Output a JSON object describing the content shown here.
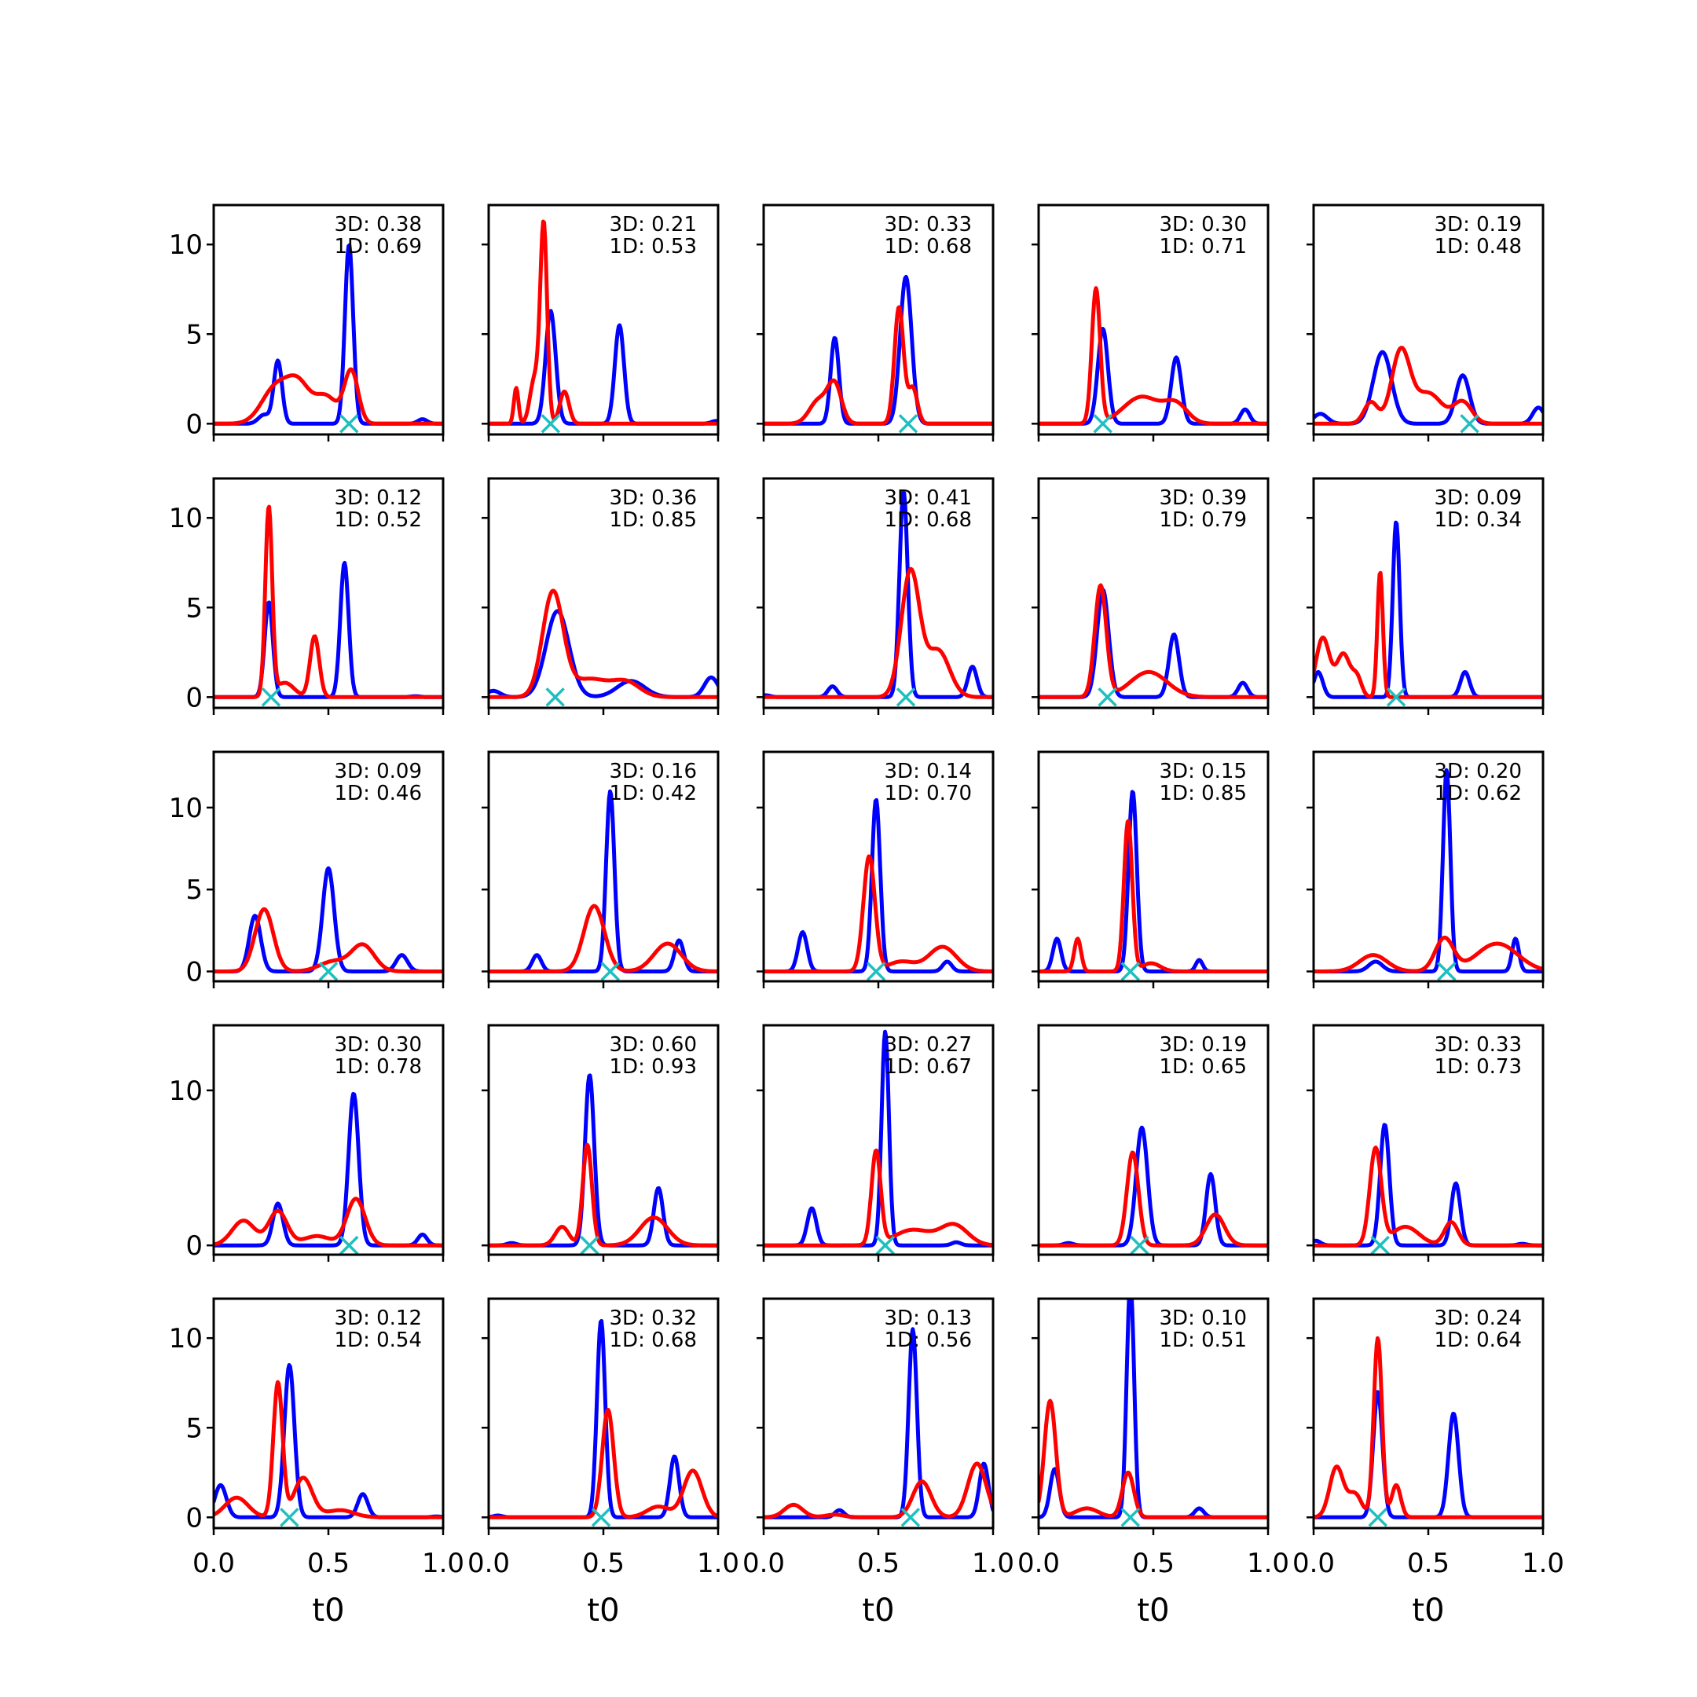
{
  "chart_data": {
    "type": "line",
    "layout": {
      "rows": 5,
      "cols": 5
    },
    "xlabel": "t0",
    "xlim": [
      0,
      1
    ],
    "xticks": [
      0.0,
      0.5,
      1.0
    ],
    "xtick_labels": [
      "0.0",
      "0.5",
      "1.0"
    ],
    "row_ylim": [
      [
        -0.6,
        12.2
      ],
      [
        -0.6,
        12.2
      ],
      [
        -0.6,
        13.4
      ],
      [
        -0.6,
        14.2
      ],
      [
        -0.6,
        12.2
      ]
    ],
    "row_yticks": [
      [
        0,
        5,
        10
      ],
      [
        0,
        5,
        10
      ],
      [
        0,
        5,
        10
      ],
      [
        0,
        10
      ],
      [
        0,
        5,
        10
      ]
    ],
    "colors": {
      "blue": "#0000ff",
      "red": "#ff0000",
      "marker": "#1fbfbf"
    },
    "panels": [
      {
        "annot": [
          "3D: 0.38",
          "1D: 0.69"
        ],
        "marker_x": 0.59,
        "blue": [
          [
            0.22,
            0.5,
            0.025
          ],
          [
            0.28,
            3.5,
            0.018
          ],
          [
            0.59,
            10.0,
            0.018
          ],
          [
            0.91,
            0.25,
            0.02
          ]
        ],
        "red": [
          [
            0.27,
            2.0,
            0.06
          ],
          [
            0.37,
            2.0,
            0.05
          ],
          [
            0.49,
            1.5,
            0.05
          ],
          [
            0.6,
            2.9,
            0.03
          ]
        ]
      },
      {
        "annot": [
          "3D: 0.21",
          "1D: 0.53"
        ],
        "marker_x": 0.27,
        "blue": [
          [
            0.27,
            6.3,
            0.022
          ],
          [
            0.57,
            5.5,
            0.02
          ],
          [
            0.99,
            0.15,
            0.02
          ]
        ],
        "red": [
          [
            0.12,
            2.0,
            0.01
          ],
          [
            0.24,
            11.0,
            0.015
          ],
          [
            0.2,
            2.5,
            0.02
          ],
          [
            0.33,
            1.8,
            0.02
          ]
        ]
      },
      {
        "annot": [
          "3D: 0.33",
          "1D: 0.68"
        ],
        "marker_x": 0.63,
        "blue": [
          [
            0.31,
            4.8,
            0.018
          ],
          [
            0.62,
            8.2,
            0.025
          ]
        ],
        "red": [
          [
            0.24,
            1.3,
            0.04
          ],
          [
            0.31,
            2.1,
            0.03
          ],
          [
            0.59,
            6.5,
            0.02
          ],
          [
            0.65,
            2.0,
            0.02
          ]
        ]
      },
      {
        "annot": [
          "3D: 0.30",
          "1D: 0.71"
        ],
        "marker_x": 0.28,
        "blue": [
          [
            0.28,
            5.3,
            0.022
          ],
          [
            0.6,
            3.7,
            0.022
          ],
          [
            0.9,
            0.8,
            0.02
          ]
        ],
        "red": [
          [
            0.25,
            7.5,
            0.018
          ],
          [
            0.45,
            1.5,
            0.08
          ],
          [
            0.6,
            1.0,
            0.05
          ]
        ]
      },
      {
        "annot": [
          "3D: 0.19",
          "1D: 0.48"
        ],
        "marker_x": 0.68,
        "blue": [
          [
            0.03,
            0.55,
            0.03
          ],
          [
            0.3,
            4.0,
            0.04
          ],
          [
            0.65,
            2.7,
            0.03
          ],
          [
            0.98,
            0.9,
            0.025
          ]
        ],
        "red": [
          [
            0.25,
            1.2,
            0.03
          ],
          [
            0.38,
            4.0,
            0.04
          ],
          [
            0.5,
            1.7,
            0.06
          ],
          [
            0.65,
            1.2,
            0.04
          ]
        ]
      },
      {
        "annot": [
          "3D: 0.12",
          "1D: 0.52"
        ],
        "marker_x": 0.25,
        "blue": [
          [
            0.24,
            5.3,
            0.018
          ],
          [
            0.57,
            7.5,
            0.018
          ],
          [
            0.88,
            0.05,
            0.02
          ]
        ],
        "red": [
          [
            0.24,
            10.5,
            0.015
          ],
          [
            0.31,
            0.8,
            0.04
          ],
          [
            0.44,
            3.4,
            0.02
          ]
        ]
      },
      {
        "annot": [
          "3D: 0.36",
          "1D: 0.85"
        ],
        "marker_x": 0.29,
        "blue": [
          [
            0.02,
            0.35,
            0.03
          ],
          [
            0.3,
            4.8,
            0.05
          ],
          [
            0.62,
            0.9,
            0.06
          ],
          [
            0.97,
            1.1,
            0.03
          ]
        ],
        "red": [
          [
            0.28,
            5.8,
            0.045
          ],
          [
            0.44,
            1.0,
            0.08
          ],
          [
            0.6,
            0.8,
            0.06
          ]
        ]
      },
      {
        "annot": [
          "3D: 0.41",
          "1D: 0.68"
        ],
        "marker_x": 0.62,
        "blue": [
          [
            0.01,
            0.1,
            0.02
          ],
          [
            0.3,
            0.6,
            0.02
          ],
          [
            0.61,
            11.5,
            0.018
          ],
          [
            0.91,
            1.7,
            0.02
          ]
        ],
        "red": [
          [
            0.64,
            7.0,
            0.04
          ],
          [
            0.76,
            2.6,
            0.05
          ]
        ]
      },
      {
        "annot": [
          "3D: 0.39",
          "1D: 0.79"
        ],
        "marker_x": 0.3,
        "blue": [
          [
            0.28,
            6.0,
            0.025
          ],
          [
            0.59,
            3.5,
            0.022
          ],
          [
            0.89,
            0.8,
            0.02
          ]
        ],
        "red": [
          [
            0.27,
            6.2,
            0.025
          ],
          [
            0.48,
            1.4,
            0.08
          ]
        ]
      },
      {
        "annot": [
          "3D: 0.09",
          "1D: 0.34"
        ],
        "marker_x": 0.36,
        "blue": [
          [
            0.02,
            1.4,
            0.02
          ],
          [
            0.36,
            9.8,
            0.015
          ],
          [
            0.66,
            1.4,
            0.02
          ]
        ],
        "red": [
          [
            0.04,
            3.3,
            0.03
          ],
          [
            0.13,
            2.4,
            0.03
          ],
          [
            0.19,
            1.0,
            0.02
          ],
          [
            0.29,
            7.0,
            0.012
          ]
        ]
      },
      {
        "annot": [
          "3D: 0.09",
          "1D: 0.46"
        ],
        "marker_x": 0.5,
        "blue": [
          [
            0.18,
            3.4,
            0.025
          ],
          [
            0.5,
            6.3,
            0.025
          ],
          [
            0.82,
            1.0,
            0.025
          ]
        ],
        "red": [
          [
            0.22,
            3.8,
            0.04
          ],
          [
            0.52,
            0.6,
            0.06
          ],
          [
            0.65,
            1.6,
            0.05
          ]
        ]
      },
      {
        "annot": [
          "3D: 0.16",
          "1D: 0.42"
        ],
        "marker_x": 0.53,
        "blue": [
          [
            0.21,
            1.0,
            0.02
          ],
          [
            0.53,
            11.0,
            0.018
          ],
          [
            0.83,
            1.9,
            0.02
          ]
        ],
        "red": [
          [
            0.46,
            4.0,
            0.045
          ],
          [
            0.78,
            1.7,
            0.06
          ]
        ]
      },
      {
        "annot": [
          "3D: 0.14",
          "1D: 0.70"
        ],
        "marker_x": 0.49,
        "blue": [
          [
            0.17,
            2.4,
            0.02
          ],
          [
            0.49,
            10.5,
            0.018
          ],
          [
            0.8,
            0.6,
            0.02
          ]
        ],
        "red": [
          [
            0.46,
            7.0,
            0.025
          ],
          [
            0.6,
            0.6,
            0.06
          ],
          [
            0.78,
            1.5,
            0.06
          ]
        ]
      },
      {
        "annot": [
          "3D: 0.15",
          "1D: 0.85"
        ],
        "marker_x": 0.4,
        "blue": [
          [
            0.08,
            2.0,
            0.018
          ],
          [
            0.41,
            11.0,
            0.018
          ],
          [
            0.7,
            0.7,
            0.015
          ]
        ],
        "red": [
          [
            0.17,
            2.0,
            0.015
          ],
          [
            0.39,
            9.2,
            0.018
          ],
          [
            0.49,
            0.5,
            0.04
          ]
        ]
      },
      {
        "annot": [
          "3D: 0.20",
          "1D: 0.62"
        ],
        "marker_x": 0.58,
        "blue": [
          [
            0.27,
            0.6,
            0.03
          ],
          [
            0.58,
            12.3,
            0.016
          ],
          [
            0.88,
            2.0,
            0.015
          ]
        ],
        "red": [
          [
            0.26,
            1.0,
            0.06
          ],
          [
            0.57,
            2.0,
            0.04
          ],
          [
            0.8,
            1.7,
            0.09
          ]
        ]
      },
      {
        "annot": [
          "3D: 0.30",
          "1D: 0.78"
        ],
        "marker_x": 0.59,
        "blue": [
          [
            0.28,
            2.7,
            0.022
          ],
          [
            0.61,
            9.8,
            0.022
          ],
          [
            0.91,
            0.7,
            0.02
          ]
        ],
        "red": [
          [
            0.13,
            1.6,
            0.05
          ],
          [
            0.28,
            2.2,
            0.04
          ],
          [
            0.45,
            0.6,
            0.06
          ],
          [
            0.62,
            3.0,
            0.04
          ]
        ]
      },
      {
        "annot": [
          "3D: 0.60",
          "1D: 0.93"
        ],
        "marker_x": 0.44,
        "blue": [
          [
            0.1,
            0.15,
            0.02
          ],
          [
            0.44,
            11.0,
            0.02
          ],
          [
            0.74,
            3.7,
            0.02
          ]
        ],
        "red": [
          [
            0.32,
            1.2,
            0.03
          ],
          [
            0.43,
            6.5,
            0.02
          ],
          [
            0.72,
            1.8,
            0.06
          ]
        ]
      },
      {
        "annot": [
          "3D: 0.27",
          "1D: 0.67"
        ],
        "marker_x": 0.53,
        "blue": [
          [
            0.21,
            2.4,
            0.02
          ],
          [
            0.53,
            13.8,
            0.016
          ],
          [
            0.84,
            0.2,
            0.02
          ]
        ],
        "red": [
          [
            0.49,
            6.0,
            0.02
          ],
          [
            0.65,
            1.0,
            0.08
          ],
          [
            0.83,
            1.3,
            0.06
          ]
        ]
      },
      {
        "annot": [
          "3D: 0.19",
          "1D: 0.65"
        ],
        "marker_x": 0.44,
        "blue": [
          [
            0.13,
            0.15,
            0.02
          ],
          [
            0.45,
            7.6,
            0.025
          ],
          [
            0.75,
            4.6,
            0.02
          ]
        ],
        "red": [
          [
            0.41,
            6.0,
            0.025
          ],
          [
            0.77,
            2.0,
            0.04
          ]
        ]
      },
      {
        "annot": [
          "3D: 0.33",
          "1D: 0.73"
        ],
        "marker_x": 0.29,
        "blue": [
          [
            0.01,
            0.3,
            0.02
          ],
          [
            0.31,
            7.8,
            0.02
          ],
          [
            0.62,
            4.0,
            0.02
          ],
          [
            0.91,
            0.1,
            0.02
          ]
        ],
        "red": [
          [
            0.27,
            6.2,
            0.025
          ],
          [
            0.4,
            1.2,
            0.06
          ],
          [
            0.6,
            1.5,
            0.03
          ]
        ]
      },
      {
        "annot": [
          "3D: 0.12",
          "1D: 0.54"
        ],
        "marker_x": 0.33,
        "blue": [
          [
            0.03,
            1.8,
            0.025
          ],
          [
            0.33,
            8.5,
            0.022
          ],
          [
            0.65,
            1.3,
            0.022
          ],
          [
            0.97,
            0.05,
            0.02
          ]
        ],
        "red": [
          [
            0.1,
            1.1,
            0.05
          ],
          [
            0.28,
            7.5,
            0.02
          ],
          [
            0.39,
            2.2,
            0.04
          ],
          [
            0.55,
            0.4,
            0.06
          ]
        ]
      },
      {
        "annot": [
          "3D: 0.32",
          "1D: 0.68"
        ],
        "marker_x": 0.49,
        "blue": [
          [
            0.04,
            0.1,
            0.02
          ],
          [
            0.49,
            11.0,
            0.018
          ],
          [
            0.81,
            3.4,
            0.02
          ]
        ],
        "red": [
          [
            0.52,
            6.0,
            0.025
          ],
          [
            0.74,
            0.6,
            0.05
          ],
          [
            0.89,
            2.6,
            0.04
          ]
        ]
      },
      {
        "annot": [
          "3D: 0.13",
          "1D: 0.56"
        ],
        "marker_x": 0.64,
        "blue": [
          [
            0.33,
            0.4,
            0.02
          ],
          [
            0.65,
            10.5,
            0.018
          ],
          [
            0.96,
            3.0,
            0.02
          ]
        ],
        "red": [
          [
            0.13,
            0.7,
            0.04
          ],
          [
            0.31,
            0.15,
            0.04
          ],
          [
            0.69,
            2.0,
            0.04
          ],
          [
            0.93,
            3.0,
            0.04
          ]
        ]
      },
      {
        "annot": [
          "3D: 0.10",
          "1D: 0.51"
        ],
        "marker_x": 0.4,
        "blue": [
          [
            0.07,
            2.7,
            0.02
          ],
          [
            0.4,
            13.2,
            0.016
          ],
          [
            0.7,
            0.5,
            0.02
          ]
        ],
        "red": [
          [
            0.05,
            6.5,
            0.025
          ],
          [
            0.21,
            0.5,
            0.05
          ],
          [
            0.39,
            2.5,
            0.025
          ]
        ]
      },
      {
        "annot": [
          "3D: 0.24",
          "1D: 0.64"
        ],
        "marker_x": 0.28,
        "blue": [
          [
            0.28,
            7.0,
            0.02
          ],
          [
            0.61,
            5.8,
            0.022
          ]
        ],
        "red": [
          [
            0.1,
            2.8,
            0.03
          ],
          [
            0.18,
            1.3,
            0.03
          ],
          [
            0.28,
            10.0,
            0.018
          ],
          [
            0.36,
            1.8,
            0.02
          ]
        ]
      }
    ]
  }
}
